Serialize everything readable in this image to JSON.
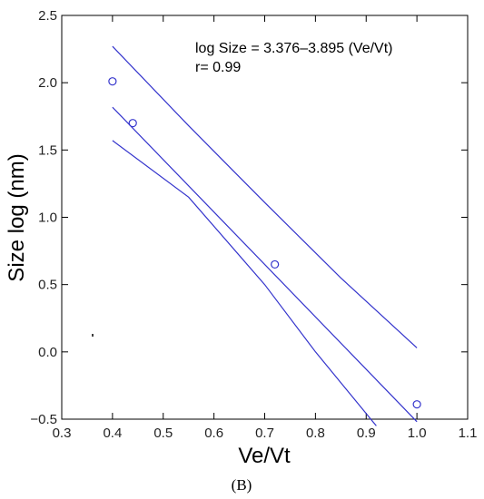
{
  "chart_data": {
    "type": "scatter",
    "xlabel": "Ve/Vt",
    "ylabel": "Size log (nm)",
    "xlim": [
      0.3,
      1.1
    ],
    "ylim": [
      -0.5,
      2.5
    ],
    "x_ticks": [
      0.3,
      0.4,
      0.5,
      0.6,
      0.7,
      0.8,
      0.9,
      1.0,
      1.1
    ],
    "x_tick_labels": [
      "0.3",
      "0.4",
      "0.5",
      "0.6",
      "0.7",
      "0.8",
      "0.9",
      "1.0",
      "1.1"
    ],
    "y_ticks": [
      -0.5,
      0.0,
      0.5,
      1.0,
      1.5,
      2.0,
      2.5
    ],
    "y_tick_labels": [
      "−0.5",
      "0.0",
      "0.5",
      "1.0",
      "1.5",
      "2.0",
      "2.5"
    ],
    "points": [
      {
        "x": 0.4,
        "y": 2.01
      },
      {
        "x": 0.44,
        "y": 1.7
      },
      {
        "x": 0.72,
        "y": 0.65
      },
      {
        "x": 1.0,
        "y": -0.39
      }
    ],
    "fit": {
      "intercept": 3.376,
      "slope": -3.895,
      "x_range": [
        0.4,
        1.0
      ]
    },
    "upper_band": [
      [
        0.4,
        2.27
      ],
      [
        0.55,
        1.68
      ],
      [
        0.7,
        1.11
      ],
      [
        0.85,
        0.55
      ],
      [
        1.0,
        0.03
      ]
    ],
    "lower_band": [
      [
        0.4,
        1.57
      ],
      [
        0.55,
        1.15
      ],
      [
        0.7,
        0.5
      ],
      [
        0.8,
        0.0
      ],
      [
        0.92,
        -0.55
      ]
    ],
    "annotations": [
      "log Size = 3.376–3.895  (Ve/Vt)",
      "r= 0.99"
    ],
    "caption": "(B)",
    "grid": false,
    "line_color": "#3333cc",
    "marker_color": "#3333cc"
  }
}
